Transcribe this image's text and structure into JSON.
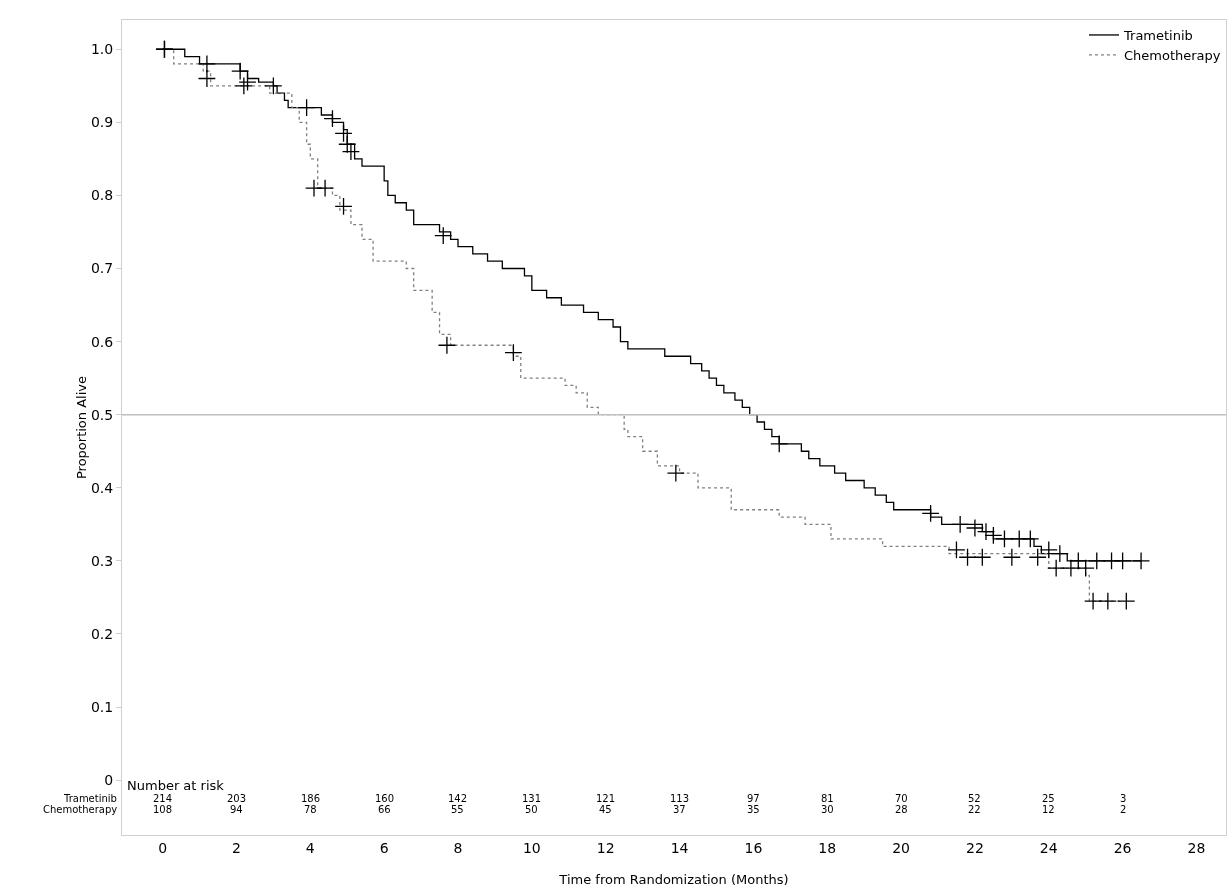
{
  "chart_data": {
    "type": "step",
    "xlabel": "Time from Randomization (Months)",
    "ylabel": "Proportion Alive",
    "xlim": [
      -1.1,
      28.8
    ],
    "ylim": [
      -0.075,
      1.04
    ],
    "xticks": [
      0,
      2,
      4,
      6,
      8,
      10,
      12,
      14,
      16,
      18,
      20,
      22,
      24,
      26,
      28
    ],
    "yticks": [
      0,
      0.1,
      0.2,
      0.3,
      0.4,
      0.5,
      0.6,
      0.7,
      0.8,
      0.9,
      {
        "value": 1,
        "label": "1.0"
      }
    ],
    "grid": false,
    "legend": "top right",
    "ref_lines": [
      {
        "axis": "y",
        "value": 0.5,
        "color": "#c0c0c0"
      }
    ],
    "series": [
      {
        "name": "Trametinib",
        "color": "#000000",
        "line_style": "solid",
        "marker": "none",
        "x": [
          0,
          0.6,
          1.0,
          2.1,
          2.3,
          2.6,
          3.0,
          3.1,
          3.3,
          3.4,
          4.3,
          4.6,
          4.9,
          5.0,
          5.2,
          5.4,
          6.0,
          6.1,
          6.3,
          6.6,
          6.8,
          7.5,
          7.8,
          8.0,
          8.4,
          8.8,
          9.2,
          9.8,
          10.0,
          10.4,
          10.8,
          11.4,
          11.8,
          12.2,
          12.4,
          12.6,
          13.6,
          14.3,
          14.6,
          14.8,
          15.0,
          15.2,
          15.5,
          15.7,
          15.9,
          16.1,
          16.3,
          16.5,
          16.7,
          17.3,
          17.5,
          17.8,
          18.2,
          18.5,
          19.0,
          19.3,
          19.6,
          19.8,
          20.8,
          21.1,
          22.2,
          22.5,
          23.6,
          23.8,
          24.5,
          26.5
        ],
        "values": [
          1.0,
          0.99,
          0.98,
          0.97,
          0.96,
          0.955,
          0.95,
          0.94,
          0.93,
          0.92,
          0.91,
          0.9,
          0.89,
          0.87,
          0.85,
          0.84,
          0.82,
          0.8,
          0.79,
          0.78,
          0.76,
          0.75,
          0.74,
          0.73,
          0.72,
          0.71,
          0.7,
          0.69,
          0.67,
          0.66,
          0.65,
          0.64,
          0.63,
          0.62,
          0.6,
          0.59,
          0.58,
          0.57,
          0.56,
          0.55,
          0.54,
          0.53,
          0.52,
          0.51,
          0.5,
          0.49,
          0.48,
          0.47,
          0.46,
          0.45,
          0.44,
          0.43,
          0.42,
          0.41,
          0.4,
          0.39,
          0.38,
          0.37,
          0.36,
          0.35,
          0.34,
          0.33,
          0.32,
          0.31,
          0.3,
          0.3
        ]
      },
      {
        "name": "Chemotherapy",
        "color": "#808080",
        "line_style": "dotted",
        "marker": "none",
        "x": [
          0,
          0.3,
          1.1,
          1.3,
          2.9,
          3.5,
          3.7,
          3.9,
          4.0,
          4.2,
          4.6,
          4.8,
          5.1,
          5.4,
          5.7,
          6.6,
          6.8,
          7.3,
          7.5,
          7.8,
          9.5,
          9.7,
          10.9,
          11.2,
          11.5,
          11.8,
          12.5,
          12.6,
          13.0,
          13.4,
          14.0,
          14.5,
          15.4,
          16.7,
          17.4,
          18.1,
          19.5,
          21.3,
          24.0,
          25.0,
          25.1,
          26.0
        ],
        "values": [
          1.0,
          0.98,
          0.97,
          0.95,
          0.94,
          0.92,
          0.9,
          0.87,
          0.85,
          0.81,
          0.8,
          0.78,
          0.76,
          0.74,
          0.71,
          0.7,
          0.67,
          0.64,
          0.61,
          0.595,
          0.58,
          0.55,
          0.54,
          0.53,
          0.51,
          0.5,
          0.48,
          0.47,
          0.45,
          0.43,
          0.42,
          0.4,
          0.37,
          0.36,
          0.35,
          0.33,
          0.32,
          0.31,
          0.29,
          0.28,
          0.245,
          0.245
        ]
      },
      {
        "type": "scatter",
        "color": "#000000",
        "marker": "cross",
        "x": [
          0.05,
          1.2,
          2.1,
          2.3,
          3.0,
          3.9,
          4.6,
          4.9,
          5.0,
          5.1,
          7.6,
          16.7,
          20.8,
          21.6,
          22.0,
          22.3,
          22.5,
          22.8,
          23.2,
          23.5,
          24.0,
          24.3,
          24.8,
          25.3,
          25.7,
          26.0,
          26.5
        ],
        "values": [
          1.0,
          0.98,
          0.97,
          0.955,
          0.95,
          0.92,
          0.905,
          0.885,
          0.87,
          0.86,
          0.745,
          0.46,
          0.365,
          0.35,
          0.345,
          0.34,
          0.335,
          0.33,
          0.33,
          0.33,
          0.315,
          0.31,
          0.3,
          0.3,
          0.3,
          0.3,
          0.3
        ]
      },
      {
        "type": "scatter",
        "color": "#000000",
        "marker": "cross",
        "x": [
          0.05,
          1.2,
          2.2,
          4.1,
          4.4,
          4.9,
          7.7,
          9.5,
          13.9,
          21.5,
          21.8,
          22.2,
          23.0,
          23.7,
          24.2,
          24.6,
          25.0,
          25.2,
          25.6,
          26.1
        ],
        "values": [
          1.0,
          0.96,
          0.95,
          0.81,
          0.81,
          0.785,
          0.595,
          0.585,
          0.42,
          0.315,
          0.305,
          0.305,
          0.305,
          0.305,
          0.29,
          0.29,
          0.29,
          0.245,
          0.245,
          0.245
        ]
      }
    ],
    "annotations": [
      "Number at risk",
      "Trametinib",
      "214",
      "203",
      "186",
      "160",
      "142",
      "131",
      "121",
      "113",
      "97",
      "81",
      "70",
      "52",
      "25",
      "3",
      "Chemotherapy",
      "108",
      "94",
      "78",
      "66",
      "55",
      "50",
      "45",
      "37",
      "35",
      "30",
      "28",
      "22",
      "12",
      "2"
    ]
  }
}
